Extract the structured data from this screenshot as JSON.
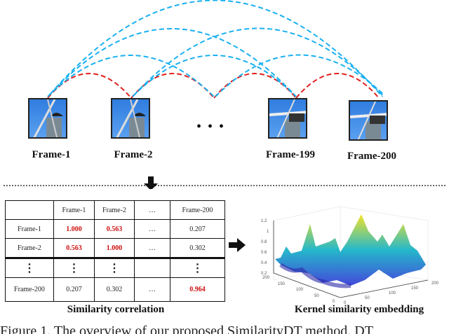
{
  "frames": [
    {
      "label": "Frame-1"
    },
    {
      "label": "Frame-2"
    },
    {
      "label": "Frame-199"
    },
    {
      "label": "Frame-200"
    }
  ],
  "ellipsis": "• • •",
  "table": {
    "header": [
      "",
      "Frame-1",
      "Frame-2",
      "…",
      "Frame-200"
    ],
    "rows": [
      [
        "Frame-1",
        "1.000",
        "0.563",
        "…",
        "0.207"
      ],
      [
        "Frame-2",
        "0.563",
        "1.000",
        "…",
        "0.302"
      ],
      [
        "⋮",
        "⋮",
        "⋮",
        "",
        "⋮"
      ],
      [
        "Frame-200",
        "0.207",
        "0.302",
        "…",
        "0.964"
      ]
    ],
    "caption": "Similarity correlation"
  },
  "plot": {
    "caption": "Kernel similarity embedding",
    "z_ticks": [
      "0.2",
      "0.4",
      "0.6",
      "0.8",
      "1",
      "1.2"
    ],
    "y_ticks": [
      "200",
      "150",
      "100",
      "50",
      "0"
    ],
    "x_ticks": [
      "0",
      "50",
      "100",
      "150",
      "200"
    ]
  },
  "figure_caption": "Figure 1. The overview of our proposed SimilarityDT method. DT",
  "colors": {
    "red_arc": "#e02020",
    "blue_arc": "#19b0f0",
    "highlight": "#d01010"
  }
}
